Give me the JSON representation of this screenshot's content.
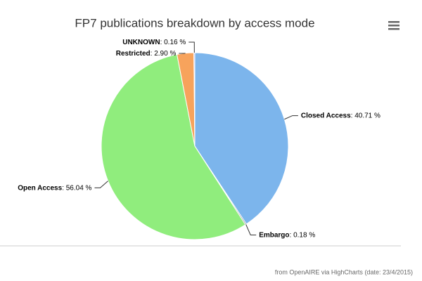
{
  "chart_data": {
    "type": "pie",
    "title": "FP7 publications breakdown by access mode",
    "categories": [
      "Closed Access",
      "Embargo",
      "Open Access",
      "Restricted",
      "UNKNOWN"
    ],
    "values": [
      40.71,
      0.18,
      56.04,
      2.9,
      0.16
    ],
    "value_labels": [
      ": 40.71 %",
      ": 0.18 %",
      ": 56.04 %",
      ": 2.90 %",
      ": 0.16 %"
    ],
    "colors": [
      "#7cb5ec",
      "#434348",
      "#90ed7d",
      "#f7a35c",
      "#8085e9"
    ],
    "credits": "from OpenAIRE via HighCharts (date: 23/4/2015)"
  }
}
